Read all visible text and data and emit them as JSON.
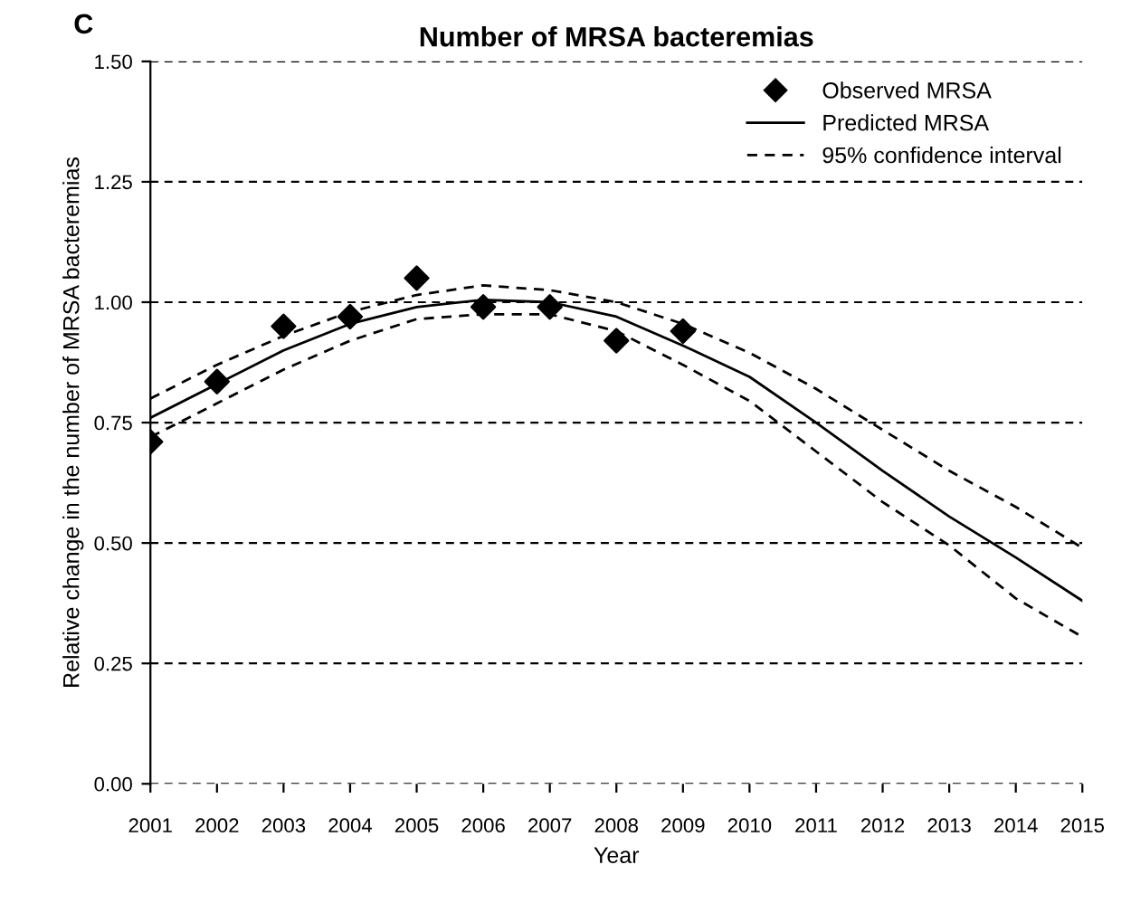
{
  "chart_data": {
    "type": "line",
    "title": "Number of MRSA bacteremias",
    "xlabel": "Year",
    "ylabel": "Relative change in the number of MRSA bacteremias",
    "annotations": [
      "C"
    ],
    "x": [
      2001,
      2002,
      2003,
      2004,
      2005,
      2006,
      2007,
      2008,
      2009,
      2010,
      2011,
      2012,
      2013,
      2014,
      2015
    ],
    "series": [
      {
        "name": "Observed MRSA",
        "type": "scatter",
        "marker": "diamond",
        "color": "#000000",
        "x": [
          2001,
          2002,
          2003,
          2004,
          2005,
          2006,
          2007,
          2008,
          2009
        ],
        "values": [
          0.71,
          0.835,
          0.95,
          0.97,
          1.05,
          0.99,
          0.99,
          0.92,
          0.94
        ]
      },
      {
        "name": "Predicted MRSA",
        "line_style": "solid",
        "color": "#000000",
        "values": [
          0.76,
          0.83,
          0.9,
          0.955,
          0.99,
          1.005,
          1.0,
          0.97,
          0.91,
          0.845,
          0.75,
          0.65,
          0.555,
          0.47,
          0.38
        ]
      },
      {
        "name": "95% confidence interval",
        "line_style": "dashed",
        "color": "#000000",
        "values": [
          0.8,
          0.87,
          0.93,
          0.98,
          1.015,
          1.035,
          1.025,
          1.0,
          0.955,
          0.895,
          0.82,
          0.735,
          0.65,
          0.575,
          0.49
        ]
      },
      {
        "line_style": "dashed",
        "color": "#000000",
        "values": [
          0.72,
          0.79,
          0.86,
          0.92,
          0.965,
          0.975,
          0.975,
          0.94,
          0.87,
          0.795,
          0.69,
          0.585,
          0.495,
          0.385,
          0.305
        ]
      }
    ],
    "xlim": [
      2001,
      2015
    ],
    "xticks": [
      2001,
      2002,
      2003,
      2004,
      2005,
      2006,
      2007,
      2008,
      2009,
      2010,
      2011,
      2012,
      2013,
      2014,
      2015
    ],
    "ylim": [
      0,
      1.5
    ],
    "yticks": [
      {
        "value": 0,
        "label": "0.00"
      },
      {
        "value": 0.25,
        "label": "0.25"
      },
      {
        "value": 0.5,
        "label": "0.50"
      },
      {
        "value": 0.75,
        "label": "0.75"
      },
      {
        "value": 1.0,
        "label": "1.00"
      },
      {
        "value": 1.25,
        "label": "1.25"
      },
      {
        "value": 1.5,
        "label": "1.50"
      }
    ],
    "grid": "y",
    "legend": "top right"
  }
}
